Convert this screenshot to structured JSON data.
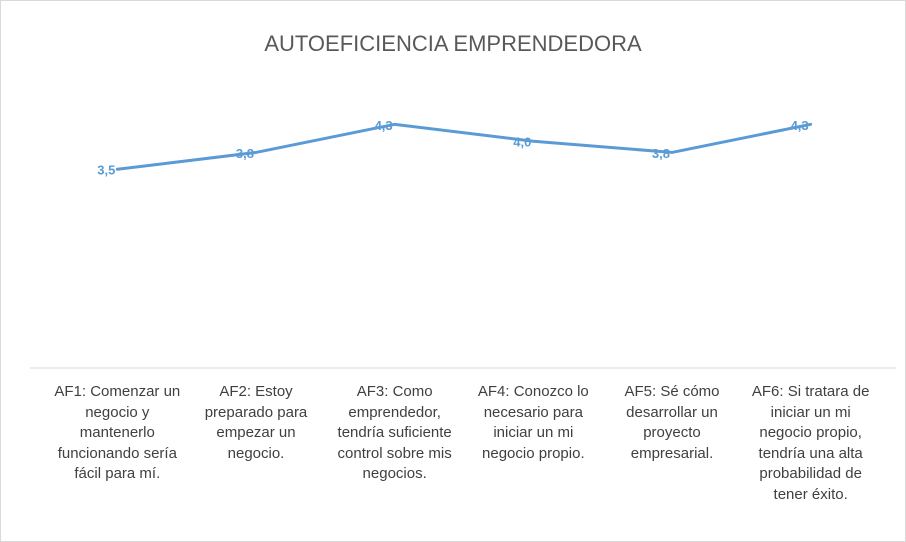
{
  "chart_data": {
    "type": "line",
    "title": "AUTOEFICIENCIA EMPRENDEDORA",
    "categories": [
      "AF1: Comenzar un negocio y mantenerlo funcionando sería fácil para mí.",
      "AF2: Estoy preparado para empezar un negocio.",
      "AF3: Como emprendedor, tendría suficiente control sobre mis negocios.",
      "AF4: Conozco lo necesario para iniciar un mi negocio propio.",
      "AF5: Sé cómo desarrollar un proyecto empresarial.",
      "AF6: Si tratara de iniciar un mi negocio propio, tendría una alta probabilidad de tener éxito."
    ],
    "values": [
      3.5,
      3.8,
      4.3,
      4.0,
      3.8,
      4.3
    ],
    "value_labels": [
      "3,5",
      "3,8",
      "4,3",
      "4,0",
      "3,8",
      "4,3"
    ],
    "color": "#5b9bd5",
    "ylim": [
      0,
      5
    ]
  }
}
